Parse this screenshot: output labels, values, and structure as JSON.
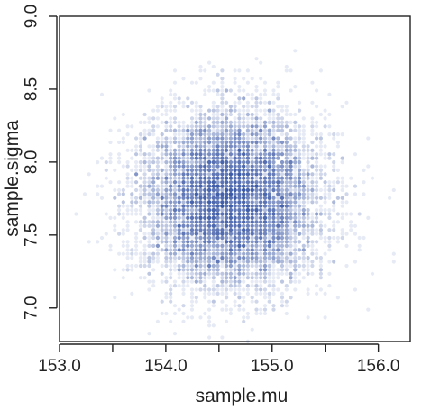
{
  "chart_data": {
    "type": "scatter",
    "title": "",
    "xlabel": "sample.mu",
    "ylabel": "sample.sigma",
    "xlim": [
      153.0,
      156.3
    ],
    "ylim": [
      6.77,
      9.0
    ],
    "x_ticks": [
      153.0,
      153.5,
      154.0,
      154.5,
      155.0,
      155.5,
      156.0
    ],
    "x_tick_labels": [
      "153.0",
      "154.0",
      "155.0",
      "156.0"
    ],
    "x_labeled_ticks": [
      153.0,
      154.0,
      155.0,
      156.0
    ],
    "y_ticks": [
      7.0,
      7.5,
      8.0,
      8.5,
      9.0
    ],
    "y_tick_labels": [
      "7.0",
      "7.5",
      "8.0",
      "8.5",
      "9.0"
    ],
    "grid": false,
    "legend": "none",
    "point_color": "#2f4fa8",
    "point_alpha": 0.12,
    "series": [
      {
        "distribution": "approximately bivariate normal, independent",
        "n_points": 10000,
        "mu_center": 154.6,
        "mu_sd": 0.41,
        "sigma_center": 7.75,
        "sigma_sd": 0.29,
        "x_grid_step": 0.0404,
        "y_grid_step": 0.0273
      }
    ]
  }
}
